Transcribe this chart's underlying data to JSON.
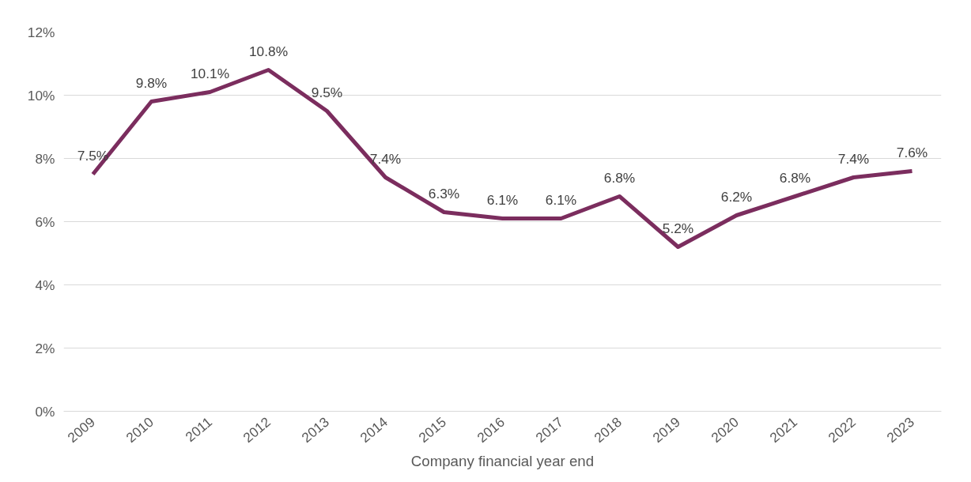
{
  "chart_data": {
    "type": "line",
    "xlabel": "Company financial year end",
    "categories": [
      "2009",
      "2010",
      "2011",
      "2012",
      "2013",
      "2014",
      "2015",
      "2016",
      "2017",
      "2018",
      "2019",
      "2020",
      "2021",
      "2022",
      "2023"
    ],
    "series": [
      {
        "color": "#7b2d5e",
        "values": [
          7.5,
          9.8,
          10.1,
          10.8,
          9.5,
          7.4,
          6.3,
          6.1,
          6.1,
          6.8,
          5.2,
          6.2,
          6.8,
          7.4,
          7.6
        ],
        "value_labels": [
          "7.5%",
          "9.8%",
          "10.1%",
          "10.8%",
          "9.5%",
          "7.4%",
          "6.3%",
          "6.1%",
          "6.1%",
          "6.8%",
          "5.2%",
          "6.2%",
          "6.8%",
          "7.4%",
          "7.6%"
        ]
      }
    ],
    "ylim": [
      0,
      12
    ],
    "yticks": [
      {
        "value": 0,
        "label": "0%"
      },
      {
        "value": 2,
        "label": "2%"
      },
      {
        "value": 4,
        "label": "4%"
      },
      {
        "value": 6,
        "label": "6%"
      },
      {
        "value": 8,
        "label": "8%"
      },
      {
        "value": 10,
        "label": "10%"
      },
      {
        "value": 12,
        "label": "12%"
      }
    ],
    "grid": "y",
    "marker": "none",
    "line_style": "solid"
  }
}
